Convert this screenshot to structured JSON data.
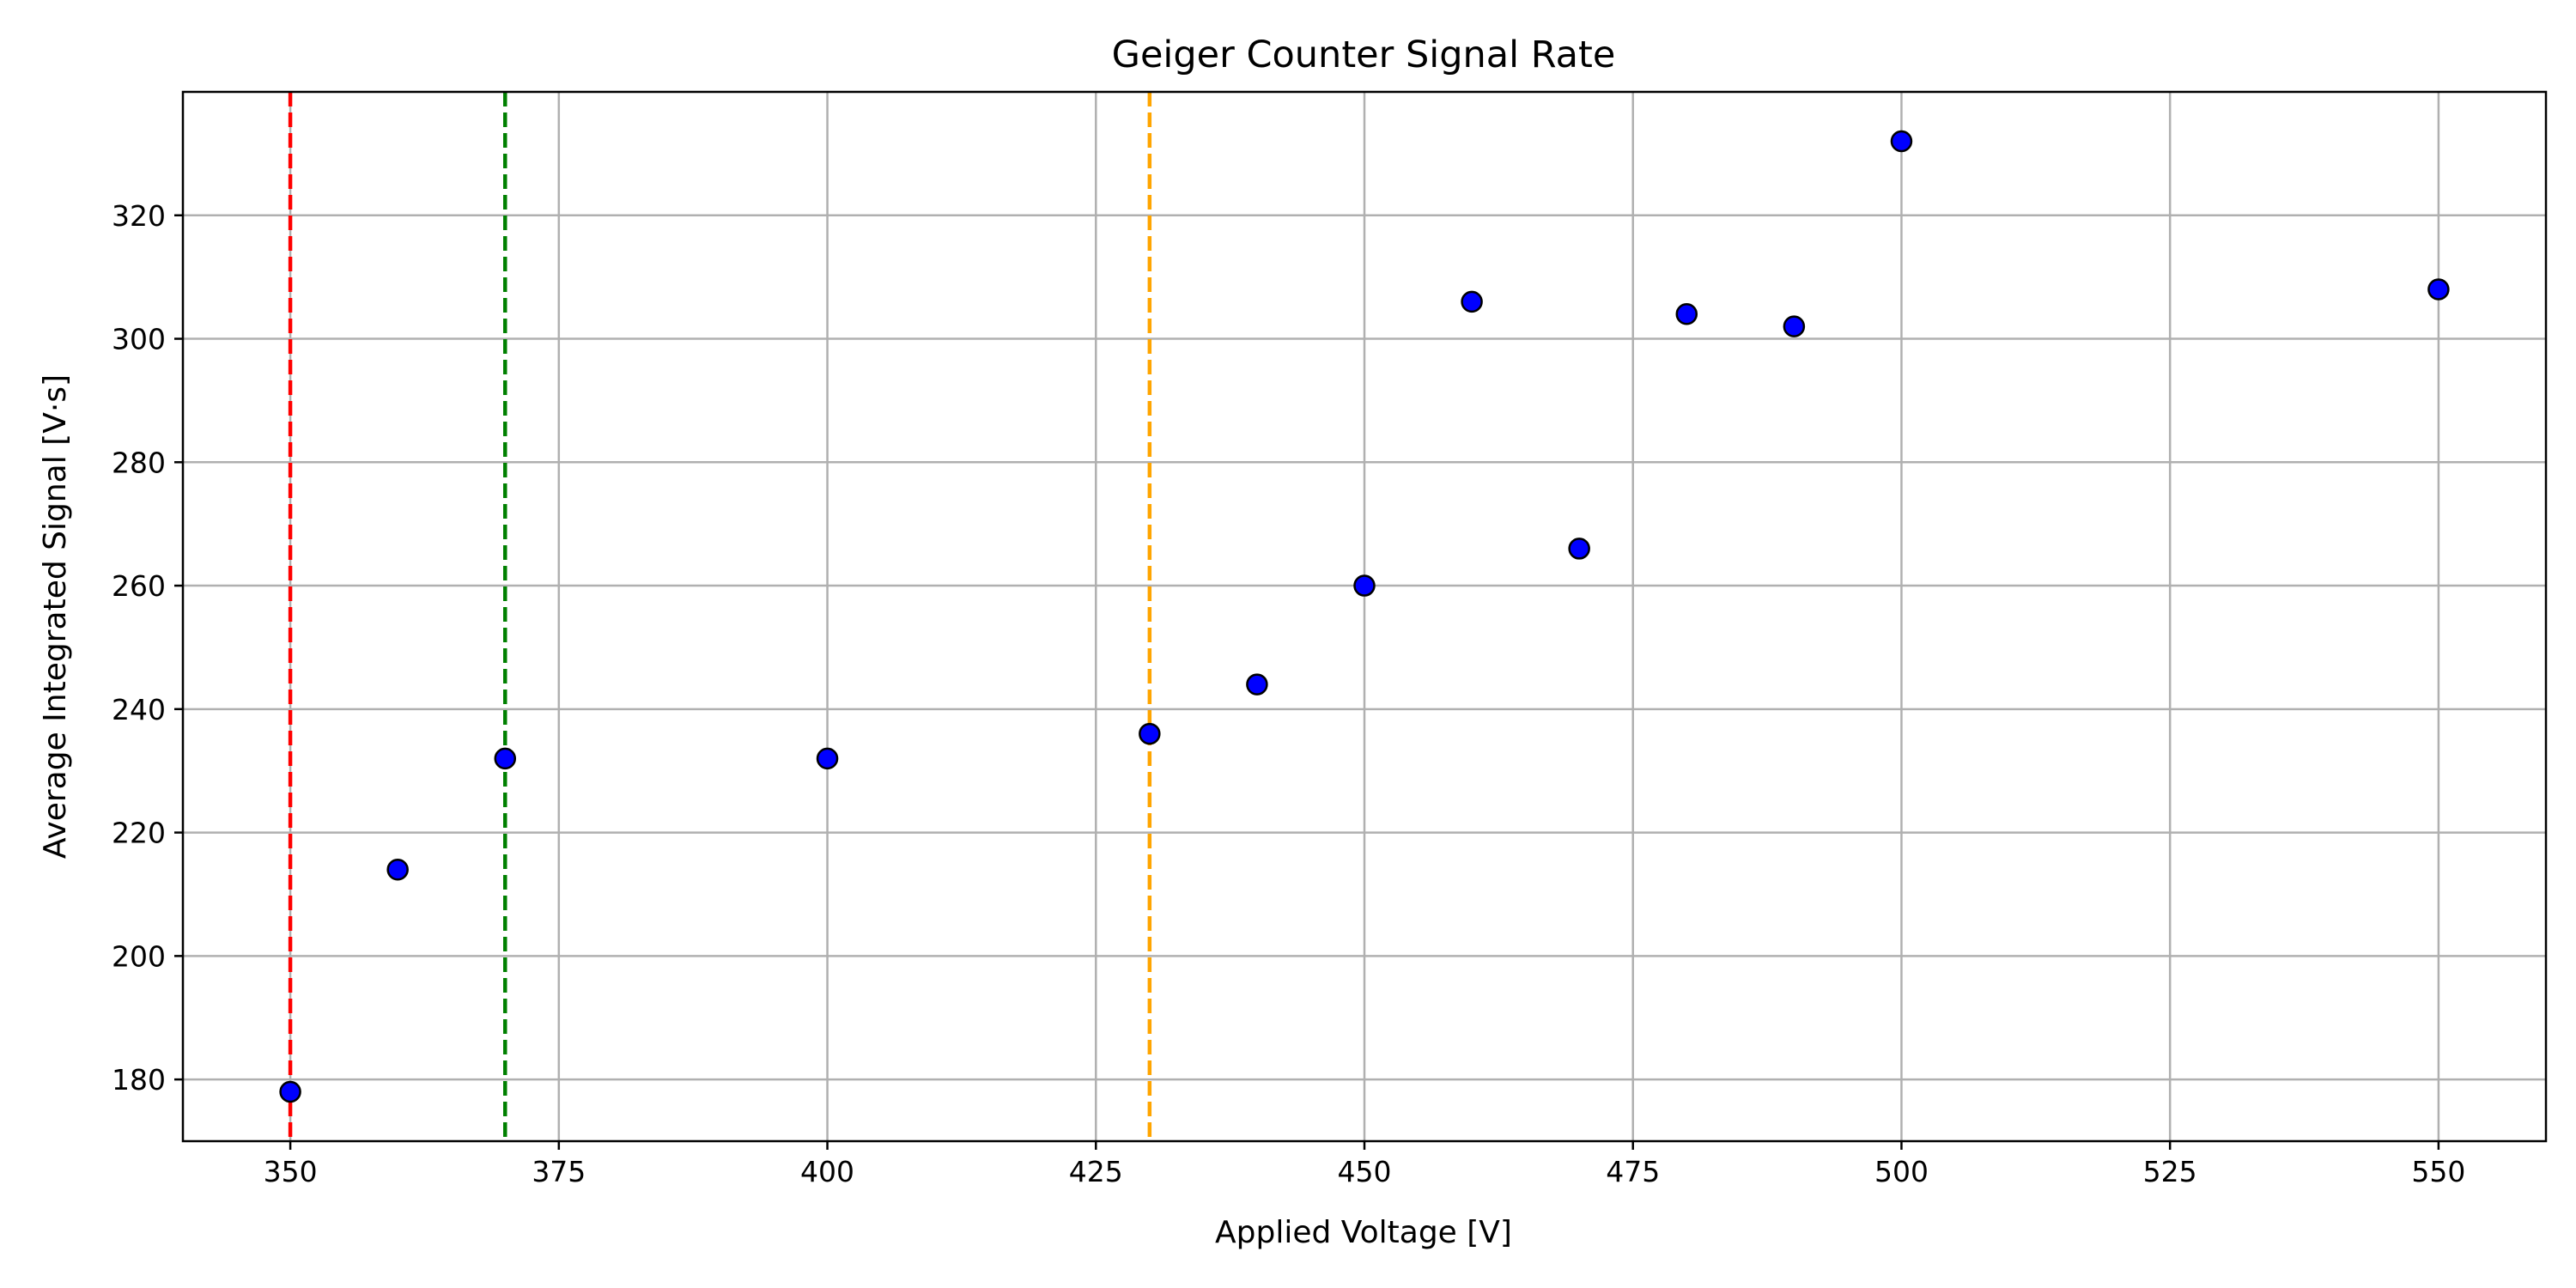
{
  "chart_data": {
    "type": "scatter",
    "title": "Geiger Counter Signal Rate",
    "xlabel": "Applied Voltage [V]",
    "ylabel": "Average Integrated Signal [V·s]",
    "xlim": [
      340,
      560
    ],
    "ylim": [
      170,
      340
    ],
    "x_ticks": [
      350,
      375,
      400,
      425,
      450,
      475,
      500,
      525,
      550
    ],
    "y_ticks": [
      180,
      200,
      220,
      240,
      260,
      280,
      300,
      320
    ],
    "grid": true,
    "points": {
      "x": [
        350,
        360,
        370,
        400,
        430,
        440,
        450,
        460,
        470,
        480,
        490,
        500,
        550
      ],
      "y": [
        178,
        214,
        232,
        232,
        236,
        244,
        260,
        306,
        266,
        304,
        302,
        332,
        308
      ],
      "color": "#0000ff",
      "edge_color": "#000000"
    },
    "vertical_lines": [
      {
        "x": 350,
        "color": "#ff0000",
        "style": "dashed"
      },
      {
        "x": 370,
        "color": "#008000",
        "style": "dashed"
      },
      {
        "x": 430,
        "color": "#ffa500",
        "style": "dashed"
      }
    ],
    "grid_color": "#b0b0b0"
  }
}
